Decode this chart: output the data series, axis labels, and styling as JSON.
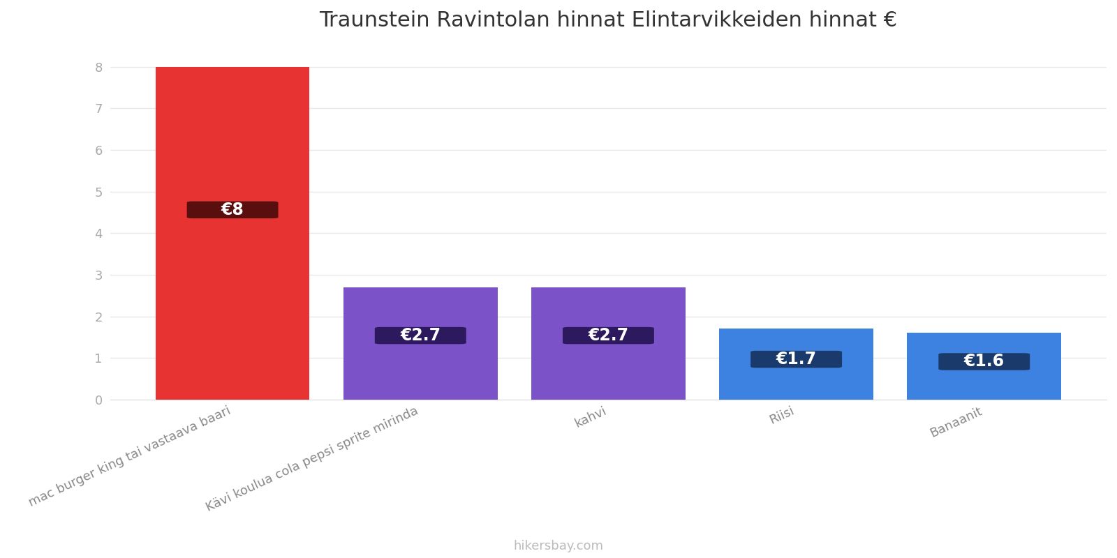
{
  "title": "Traunstein Ravintolan hinnat Elintarvikkeiden hinnat €",
  "categories": [
    "mac burger king tai vastaava baari",
    "Kävi koulua cola pepsi sprite mirinda",
    "kahvi",
    "Riisi",
    "Banaanit"
  ],
  "values": [
    8.0,
    2.7,
    2.7,
    1.7,
    1.6
  ],
  "bar_colors": [
    "#e83333",
    "#7b52c8",
    "#7b52c8",
    "#3d82e0",
    "#3d82e0"
  ],
  "label_bg_colors": [
    "#5a0f0f",
    "#2d1a5e",
    "#2d1a5e",
    "#1a3a6b",
    "#1a3a6b"
  ],
  "labels": [
    "€8",
    "€2.7",
    "€2.7",
    "€1.7",
    "€1.6"
  ],
  "ylim": [
    0,
    8.5
  ],
  "yticks": [
    0,
    1,
    2,
    3,
    4,
    5,
    6,
    7,
    8
  ],
  "background_color": "#ffffff",
  "grid_color": "#e8e8e8",
  "footer_text": "hikersbay.com",
  "title_fontsize": 22,
  "tick_fontsize": 13,
  "label_fontsize": 17,
  "footer_fontsize": 13,
  "bar_width": 0.82
}
